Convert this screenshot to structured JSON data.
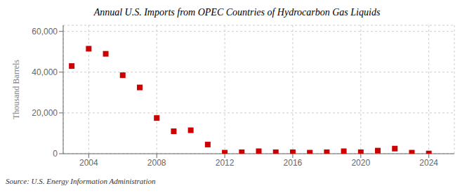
{
  "chart_data": {
    "type": "scatter",
    "title": "Annual U.S. Imports from OPEC Countries of Hydrocarbon Gas Liquids",
    "y_label": "Thousand Barrels",
    "annotation": "Source: U.S. Energy Information Administration",
    "x": [
      2003,
      2004,
      2005,
      2006,
      2007,
      2008,
      2009,
      2010,
      2011,
      2012,
      2013,
      2014,
      2015,
      2016,
      2017,
      2018,
      2019,
      2020,
      2021,
      2022,
      2023,
      2024
    ],
    "values": [
      43000,
      51500,
      49000,
      38500,
      32500,
      17500,
      11000,
      11500,
      4500,
      500,
      700,
      1200,
      700,
      700,
      500,
      700,
      1200,
      700,
      1500,
      2500,
      500,
      100
    ],
    "color": "#cc0000",
    "marker": "square",
    "xlim": [
      2002.5,
      2025.5
    ],
    "ylim": [
      0,
      63000
    ],
    "xticks": [
      2004,
      2008,
      2012,
      2016,
      2020,
      2024
    ],
    "yticks": [
      0,
      {
        "value": 20000,
        "label": "20,000"
      },
      {
        "value": 40000,
        "label": "40,000"
      },
      {
        "value": 60000,
        "label": "60,000"
      }
    ],
    "grid": true
  }
}
